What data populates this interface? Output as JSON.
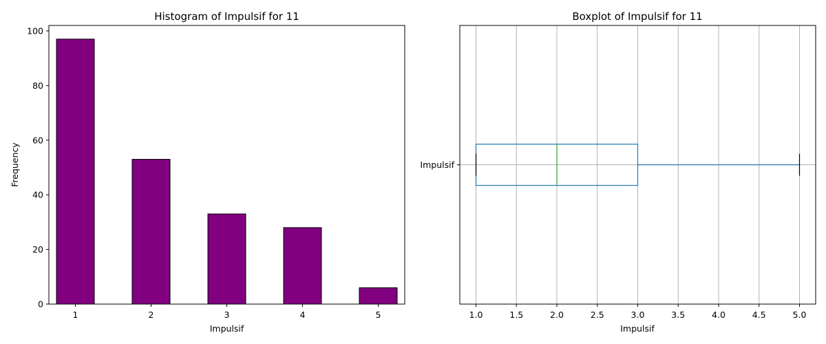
{
  "chart_data": [
    {
      "type": "bar",
      "title": "Histogram of Impulsif for 11",
      "xlabel": "Impulsif",
      "ylabel": "Frequency",
      "categories": [
        "1",
        "2",
        "3",
        "4",
        "5"
      ],
      "values": [
        97,
        53,
        33,
        28,
        6
      ],
      "ylim": [
        0,
        102
      ],
      "yticks": [
        0,
        20,
        40,
        60,
        80,
        100
      ],
      "bar_color": "#800080",
      "edge_color": "#000000",
      "grid": false
    },
    {
      "type": "boxplot",
      "title": "Boxplot of Impulsif for 11",
      "xlabel": "Impulsif",
      "category": "Impulsif",
      "stats": {
        "whisker_low": 1.0,
        "q1": 1.0,
        "median": 2.0,
        "q3": 3.0,
        "whisker_high": 5.0
      },
      "xlim": [
        0.8,
        5.2
      ],
      "xticks": [
        "1.0",
        "1.5",
        "2.0",
        "2.5",
        "3.0",
        "3.5",
        "4.0",
        "4.5",
        "5.0"
      ],
      "box_color": "#1f77b4",
      "median_color": "#2ca02c",
      "grid": true
    }
  ]
}
